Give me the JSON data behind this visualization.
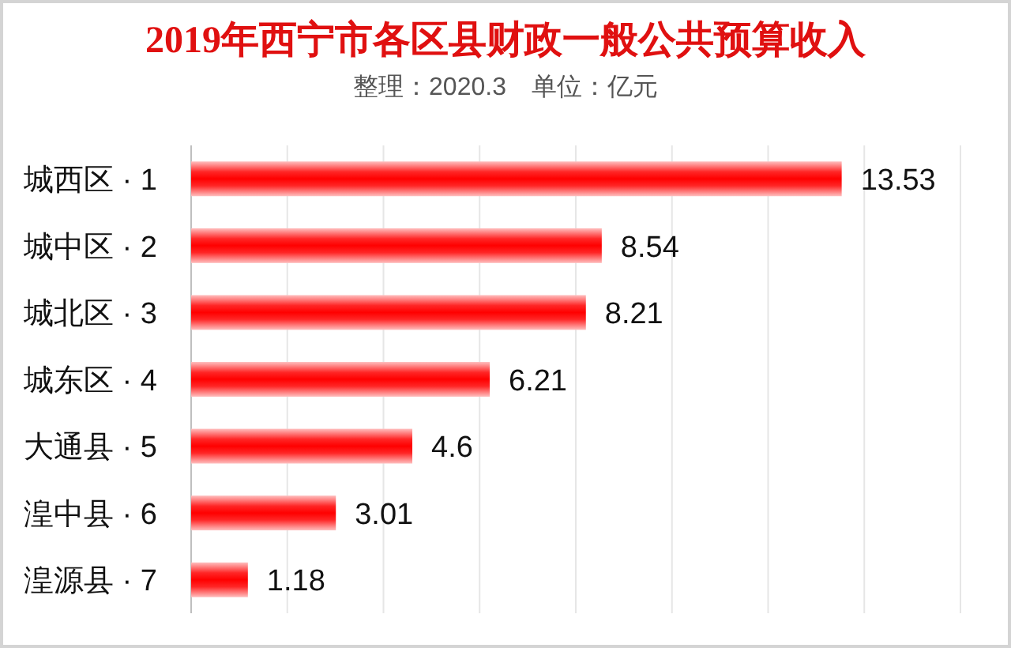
{
  "chart_data": {
    "type": "bar",
    "orientation": "horizontal",
    "title": "2019年西宁市各区县财政一般公共预算收入",
    "subtitle": "整理：2020.3　单位：亿元",
    "categories": [
      "城西区 · 1",
      "城中区 · 2",
      "城北区 · 3",
      "城东区 · 4",
      "大通县 · 5",
      "湟中县 · 6",
      "湟源县 · 7"
    ],
    "values": [
      13.53,
      8.54,
      8.21,
      6.21,
      4.6,
      3.01,
      1.18
    ],
    "color": "#ff0000",
    "data_labels": true,
    "xlim": [
      0,
      16
    ],
    "xticks": [
      {
        "value": 0,
        "label": null
      },
      {
        "value": 2,
        "label": null
      },
      {
        "value": 4,
        "label": null
      },
      {
        "value": 6,
        "label": null
      },
      {
        "value": 8,
        "label": null
      },
      {
        "value": 10,
        "label": null
      },
      {
        "value": 12,
        "label": null
      },
      {
        "value": 14,
        "label": null
      },
      {
        "value": 16,
        "label": null
      }
    ],
    "grid": "x",
    "tick_labels": "y"
  }
}
